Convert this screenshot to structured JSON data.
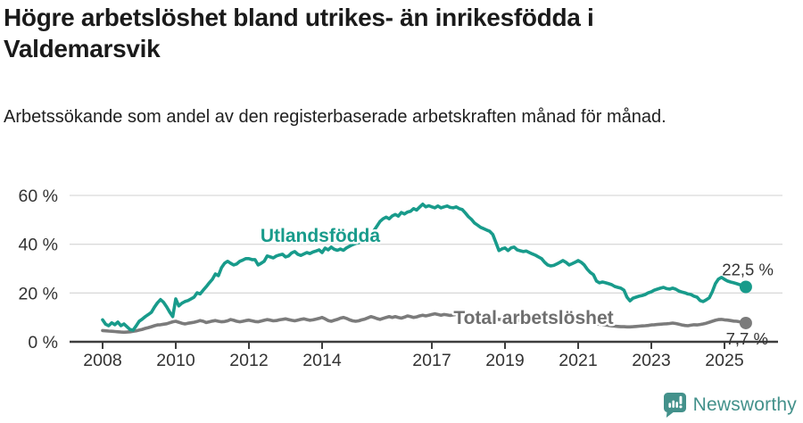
{
  "title": "Högre arbetslöshet bland utrikes- än inrikesfödda i Valdemarsvik",
  "subtitle": "Arbetssökande som andel av den registerbaserade arbetskraften månad för månad.",
  "footer": {
    "brand": "Newsworthy",
    "logo_icon": "newsworthy-speech-bubble-chart-icon"
  },
  "colors": {
    "foreign_born": "#189b8b",
    "total": "#7b7b7b",
    "total_label": "#6e6e6e",
    "grid": "#dadada",
    "axis": "#3e3e3e",
    "tick_text": "#333333",
    "title_text": "#1a1a1a",
    "brand": "#43918b"
  },
  "chart_data": {
    "type": "line",
    "unit": "%",
    "x_start": {
      "year": 2008,
      "month": 1
    },
    "x_end": {
      "year": 2025,
      "month": 8
    },
    "x_tick_years": [
      2008,
      2010,
      2012,
      2014,
      2017,
      2019,
      2021,
      2023,
      2025
    ],
    "y_ticks": [
      0,
      20,
      40,
      60
    ],
    "y_tick_labels": [
      "0 %",
      "20 %",
      "40 %",
      "60 %"
    ],
    "ylim": [
      0,
      62
    ],
    "grid": "horizontal",
    "legend_position": "inline-labels",
    "annotations": [
      {
        "text": "Utlandsfödda",
        "x": 2013.95,
        "y": 43.5,
        "color": "#189b8b"
      },
      {
        "text": "Total arbetslöshet",
        "x": 2019.78,
        "y": 9.9,
        "color": "#6e6e6e"
      }
    ],
    "series": [
      {
        "name": "Utlandsfödda",
        "color": "#189b8b",
        "end_label": "22,5 %",
        "end_value": 22.5,
        "values": [
          9.0,
          7.2,
          6.6,
          7.8,
          7.0,
          8.1,
          6.6,
          7.3,
          6.2,
          5.0,
          4.8,
          6.5,
          8.4,
          9.3,
          10.3,
          11.2,
          12.1,
          14.2,
          16.0,
          17.3,
          16.2,
          14.3,
          12.2,
          10.3,
          17.6,
          14.7,
          15.8,
          16.5,
          16.9,
          17.6,
          18.3,
          20.1,
          19.6,
          21.2,
          22.6,
          24.2,
          25.6,
          27.8,
          27.1,
          30.4,
          32.2,
          33.0,
          32.2,
          31.5,
          31.9,
          33.0,
          33.5,
          34.1,
          34.1,
          33.7,
          33.7,
          31.5,
          32.2,
          33.0,
          35.2,
          34.8,
          34.4,
          35.2,
          35.6,
          35.9,
          34.8,
          35.2,
          36.4,
          37.0,
          35.9,
          35.4,
          36.0,
          36.6,
          36.2,
          36.8,
          37.2,
          37.7,
          36.6,
          38.4,
          37.7,
          38.8,
          37.9,
          37.5,
          38.0,
          37.5,
          38.5,
          39.2,
          39.8,
          40.3,
          40.6,
          41.2,
          42.0,
          42.8,
          43.8,
          45.6,
          47.4,
          49.3,
          50.4,
          51.1,
          50.4,
          51.6,
          52.2,
          51.5,
          53.0,
          52.4,
          53.2,
          53.5,
          54.6,
          54.0,
          55.2,
          56.4,
          55.3,
          55.8,
          55.3,
          54.9,
          55.7,
          54.9,
          55.3,
          55.7,
          55.1,
          54.9,
          55.3,
          54.6,
          54.2,
          52.8,
          51.3,
          50.2,
          48.7,
          47.8,
          46.9,
          46.4,
          45.8,
          45.3,
          44.0,
          40.7,
          37.4,
          38.1,
          38.5,
          37.4,
          38.5,
          38.8,
          37.7,
          37.3,
          37.0,
          37.2,
          36.6,
          36.0,
          35.5,
          34.8,
          34.1,
          32.6,
          31.5,
          31.1,
          31.3,
          31.9,
          32.6,
          33.3,
          32.6,
          31.5,
          32.0,
          32.6,
          33.3,
          32.6,
          31.5,
          29.7,
          28.4,
          27.5,
          24.9,
          24.2,
          24.5,
          24.2,
          23.8,
          23.4,
          22.7,
          22.3,
          22.0,
          21.2,
          18.3,
          16.8,
          17.9,
          18.3,
          18.7,
          19.0,
          19.4,
          20.1,
          20.5,
          21.2,
          21.6,
          22.0,
          22.3,
          21.8,
          21.6,
          22.0,
          21.6,
          20.8,
          20.4,
          20.1,
          19.6,
          19.4,
          18.7,
          18.3,
          16.9,
          16.5,
          17.2,
          18.0,
          20.5,
          23.8,
          25.7,
          26.4,
          25.6,
          24.9,
          24.5,
          24.2,
          23.8,
          23.4,
          22.9,
          22.5
        ]
      },
      {
        "name": "Total arbetslöshet",
        "color": "#7b7b7b",
        "end_label": "7,7 %",
        "end_value": 7.7,
        "values": [
          4.6,
          4.5,
          4.4,
          4.3,
          4.2,
          4.1,
          4.0,
          3.9,
          4.0,
          4.1,
          4.3,
          4.5,
          4.8,
          5.1,
          5.5,
          5.8,
          6.2,
          6.6,
          6.9,
          7.0,
          7.2,
          7.4,
          7.8,
          8.2,
          8.4,
          8.0,
          7.6,
          7.3,
          7.6,
          7.8,
          8.0,
          8.3,
          8.7,
          8.4,
          7.9,
          8.2,
          8.5,
          8.7,
          8.4,
          8.2,
          8.3,
          8.6,
          9.1,
          8.8,
          8.4,
          8.2,
          8.4,
          8.7,
          8.9,
          8.6,
          8.3,
          8.2,
          8.5,
          8.8,
          9.1,
          8.9,
          8.6,
          8.7,
          9.0,
          9.2,
          9.4,
          9.1,
          8.8,
          8.6,
          8.9,
          9.2,
          9.4,
          9.1,
          8.8,
          9.0,
          9.3,
          9.6,
          10.0,
          9.4,
          8.7,
          8.4,
          8.8,
          9.2,
          9.7,
          10.0,
          9.6,
          9.0,
          8.6,
          8.4,
          8.6,
          9.0,
          9.3,
          9.8,
          10.3,
          10.0,
          9.5,
          9.2,
          9.6,
          10.0,
          10.3,
          10.0,
          10.3,
          10.0,
          9.7,
          10.1,
          10.6,
          10.3,
          10.0,
          10.2,
          10.6,
          10.9,
          10.6,
          10.9,
          11.2,
          11.5,
          11.2,
          10.9,
          11.2,
          11.0,
          10.8,
          11.0,
          11.2,
          10.9,
          10.7,
          10.5,
          10.4,
          10.2,
          10.0,
          9.9,
          9.8,
          9.7,
          9.6,
          9.5,
          9.4,
          9.3,
          9.2,
          9.1,
          9.0,
          8.9,
          8.9,
          8.8,
          8.8,
          8.7,
          8.7,
          8.6,
          8.6,
          8.6,
          8.7,
          8.8,
          9.0,
          9.2,
          9.5,
          9.7,
          9.8,
          9.7,
          9.6,
          9.5,
          9.4,
          9.2,
          9.0,
          8.8,
          8.6,
          8.4,
          8.2,
          8.0,
          7.8,
          7.6,
          7.4,
          7.2,
          7.0,
          6.9,
          6.7,
          6.5,
          6.4,
          6.3,
          6.2,
          6.2,
          6.1,
          6.1,
          6.2,
          6.3,
          6.4,
          6.5,
          6.6,
          6.7,
          6.9,
          7.0,
          7.1,
          7.2,
          7.3,
          7.4,
          7.5,
          7.7,
          7.5,
          7.2,
          6.9,
          6.7,
          6.6,
          6.8,
          7.0,
          6.9,
          7.1,
          7.3,
          7.6,
          8.0,
          8.4,
          8.8,
          9.1,
          9.2,
          9.0,
          8.9,
          8.7,
          8.5,
          8.4,
          8.2,
          8.0,
          7.7
        ]
      }
    ]
  }
}
